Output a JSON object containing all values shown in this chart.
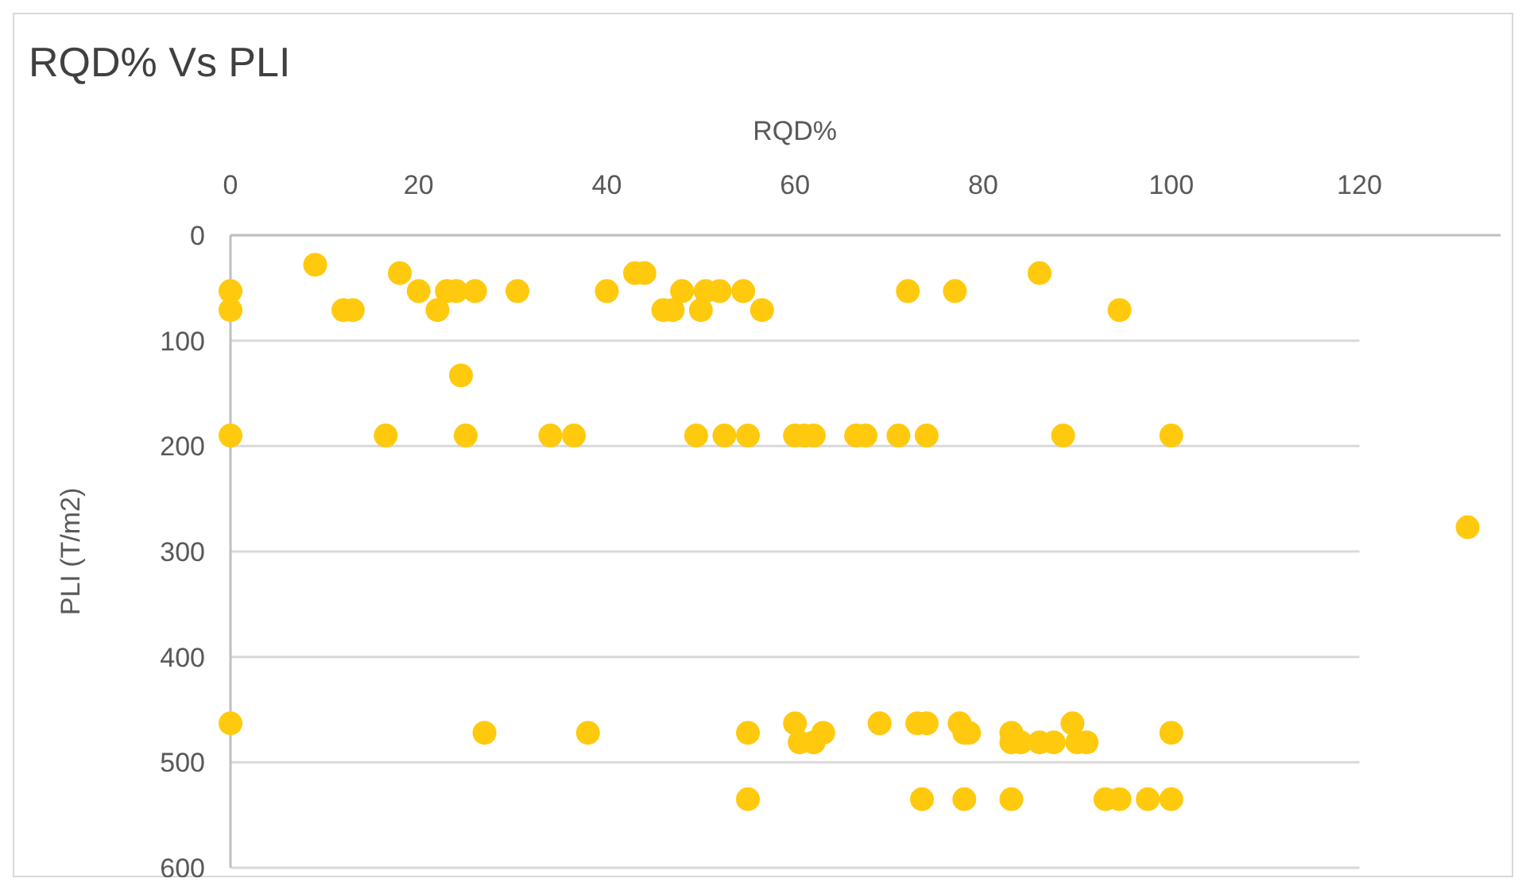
{
  "chart_data": {
    "type": "scatter",
    "title": "RQD% Vs PLI",
    "xlabel": "RQD%",
    "ylabel": "PLI (T/m2)",
    "xlim": [
      0,
      135
    ],
    "xticks": [
      0,
      20,
      40,
      60,
      80,
      100,
      120
    ],
    "ylim": [
      600,
      0
    ],
    "yticks": [
      0,
      100,
      200,
      300,
      400,
      500,
      600
    ],
    "grid": "y",
    "marker": "circle",
    "series": [
      {
        "color": "#ffc90e",
        "x": [
          0,
          0,
          9,
          12,
          13,
          18,
          20,
          22,
          23,
          24,
          24.5,
          26,
          30.5,
          40,
          43,
          44,
          46,
          47,
          48,
          50,
          50.5,
          52,
          54.5,
          56.5,
          72,
          77,
          86,
          94.5,
          0,
          16.5,
          25,
          34,
          36.5,
          49.5,
          52.5,
          55,
          60,
          61,
          62,
          66.5,
          67.5,
          71,
          74,
          88.5,
          100,
          131.5,
          0,
          27,
          38,
          55,
          55,
          60,
          60.5,
          62,
          63,
          69,
          73,
          74,
          77.5,
          78,
          78.5,
          83,
          83,
          84,
          86,
          87.5,
          89.5,
          90,
          91,
          100,
          73.5,
          78,
          83,
          93,
          94.5,
          97.5,
          100
        ],
        "values": [
          53,
          71,
          28,
          71,
          71,
          36,
          53,
          71,
          53,
          53,
          133,
          53,
          53,
          53,
          36,
          36,
          71,
          71,
          53,
          71,
          53,
          53,
          53,
          71,
          53,
          53,
          36,
          71,
          190,
          190,
          190,
          190,
          190,
          190,
          190,
          190,
          190,
          190,
          190,
          190,
          190,
          190,
          190,
          190,
          190,
          277,
          463,
          472,
          472,
          472,
          535,
          463,
          481,
          481,
          472,
          463,
          463,
          463,
          463,
          472,
          472,
          481,
          472,
          481,
          481,
          481,
          463,
          481,
          481,
          472,
          535,
          535,
          535,
          535,
          535,
          535,
          535
        ]
      }
    ]
  }
}
